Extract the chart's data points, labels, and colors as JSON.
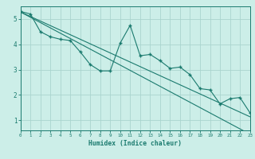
{
  "xlabel": "Humidex (Indice chaleur)",
  "bg_color": "#cceee8",
  "line_color": "#1a7a6e",
  "grid_color": "#aad4ce",
  "x_data": [
    0,
    1,
    2,
    3,
    4,
    5,
    6,
    7,
    8,
    9,
    10,
    11,
    12,
    13,
    14,
    15,
    16,
    17,
    18,
    19,
    20,
    21,
    22,
    23
  ],
  "y_main": [
    5.3,
    5.2,
    4.5,
    4.3,
    4.2,
    4.15,
    3.7,
    3.2,
    2.95,
    2.95,
    4.05,
    4.75,
    3.55,
    3.6,
    3.35,
    3.05,
    3.1,
    2.8,
    2.25,
    2.2,
    1.65,
    1.85,
    1.9,
    1.3
  ],
  "y_trend1": [
    5.28,
    5.07,
    4.86,
    4.65,
    4.44,
    4.23,
    4.02,
    3.81,
    3.6,
    3.39,
    3.18,
    2.97,
    2.76,
    2.55,
    2.34,
    2.13,
    1.92,
    1.71,
    1.5,
    1.29,
    1.08,
    0.87,
    0.66,
    0.45
  ],
  "y_trend2": [
    5.28,
    5.1,
    4.92,
    4.74,
    4.56,
    4.38,
    4.2,
    4.02,
    3.84,
    3.66,
    3.48,
    3.3,
    3.12,
    2.94,
    2.76,
    2.58,
    2.4,
    2.22,
    2.04,
    1.86,
    1.68,
    1.5,
    1.32,
    1.14
  ],
  "ylim": [
    0.6,
    5.5
  ],
  "xlim": [
    0,
    23
  ],
  "yticks": [
    1,
    2,
    3,
    4,
    5
  ],
  "xticks": [
    0,
    1,
    2,
    3,
    4,
    5,
    6,
    7,
    8,
    9,
    10,
    11,
    12,
    13,
    14,
    15,
    16,
    17,
    18,
    19,
    20,
    21,
    22,
    23
  ]
}
